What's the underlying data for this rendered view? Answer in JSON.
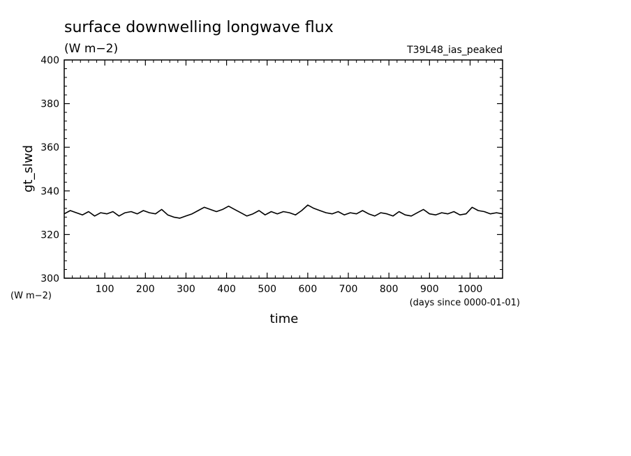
{
  "chart_data": {
    "type": "line",
    "title": "surface downwelling longwave flux",
    "subtitle": "(W m−2)",
    "run_label": "T39L48_ias_peaked",
    "ylabel": "gt_slwd",
    "yunit": "(W m−2)",
    "xlabel": "time",
    "xunit": "(days since 0000-01-01)",
    "xlim": [
      0,
      1080
    ],
    "ylim": [
      300,
      400
    ],
    "x_ticks": [
      100,
      200,
      300,
      400,
      500,
      600,
      700,
      800,
      900,
      1000
    ],
    "y_ticks": [
      300,
      320,
      340,
      360,
      380,
      400
    ],
    "grid": false,
    "series": [
      {
        "color": "#000000",
        "x": [
          0,
          15,
          30,
          45,
          60,
          75,
          90,
          105,
          120,
          135,
          150,
          165,
          180,
          195,
          210,
          225,
          240,
          255,
          270,
          285,
          300,
          315,
          330,
          345,
          360,
          375,
          390,
          405,
          420,
          435,
          450,
          465,
          480,
          495,
          510,
          525,
          540,
          555,
          570,
          585,
          600,
          615,
          630,
          645,
          660,
          675,
          690,
          705,
          720,
          735,
          750,
          765,
          780,
          795,
          810,
          825,
          840,
          855,
          870,
          885,
          900,
          915,
          930,
          945,
          960,
          975,
          990,
          1005,
          1020,
          1035,
          1050,
          1065,
          1080
        ],
        "y": [
          329.5,
          331.0,
          330.0,
          329.0,
          330.5,
          328.5,
          330.0,
          329.5,
          330.5,
          328.5,
          330.0,
          330.5,
          329.5,
          331.0,
          330.0,
          329.5,
          331.5,
          329.0,
          328.0,
          327.5,
          328.5,
          329.5,
          331.0,
          332.5,
          331.5,
          330.5,
          331.5,
          333.0,
          331.5,
          330.0,
          328.5,
          329.5,
          331.0,
          329.0,
          330.5,
          329.5,
          330.5,
          330.0,
          329.0,
          331.0,
          333.5,
          332.0,
          331.0,
          330.0,
          329.5,
          330.5,
          329.0,
          330.0,
          329.5,
          331.0,
          329.5,
          328.5,
          330.0,
          329.5,
          328.5,
          330.5,
          329.0,
          328.5,
          330.0,
          331.5,
          329.5,
          329.0,
          330.0,
          329.5,
          330.5,
          329.0,
          329.5,
          332.5,
          331.0,
          330.5,
          329.5,
          330.0,
          329.5
        ]
      }
    ]
  }
}
